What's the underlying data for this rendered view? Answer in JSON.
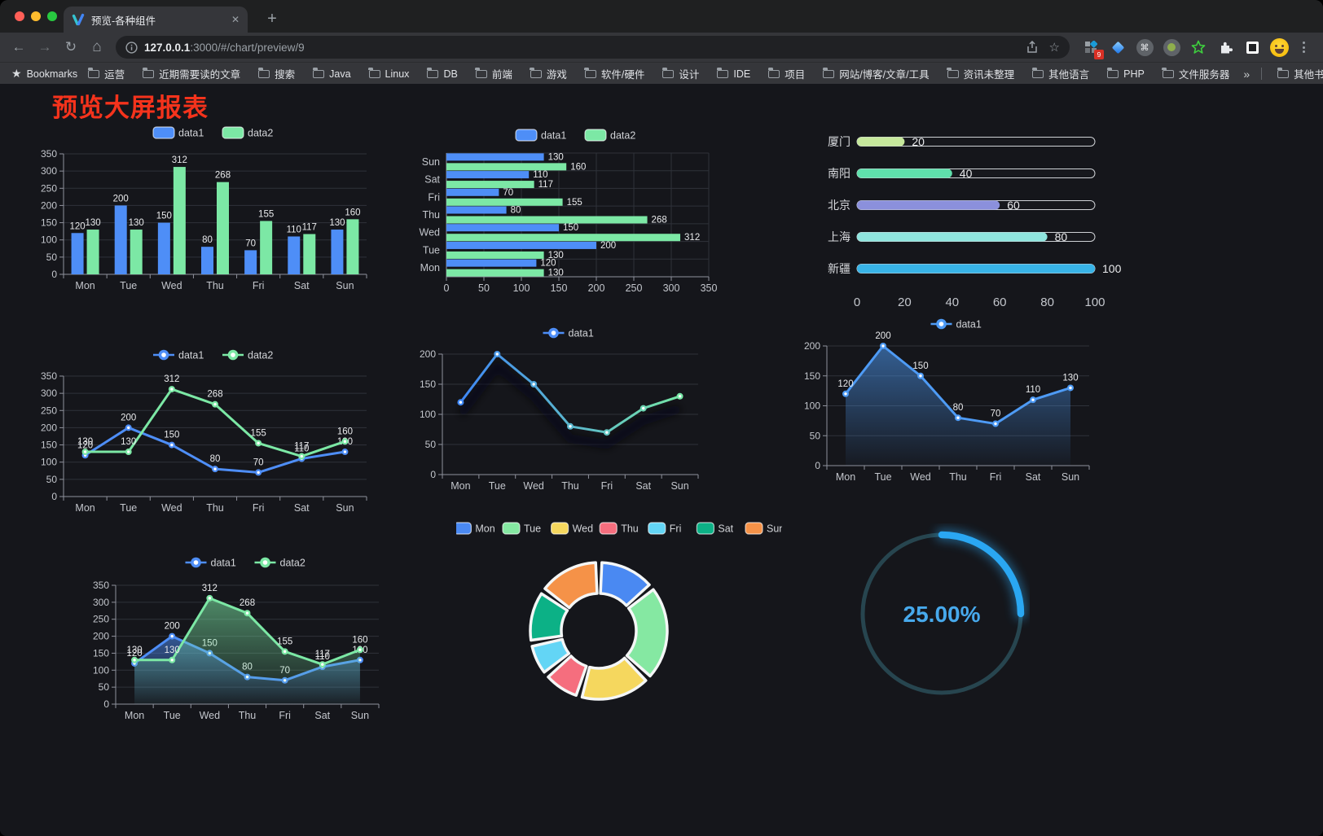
{
  "browser": {
    "traffic_lights": [
      "#ff5f57",
      "#febc2e",
      "#28c840"
    ],
    "tab": {
      "title": "预览-各种组件"
    },
    "close_icon": "✕",
    "new_tab_icon": "+",
    "nav": {
      "back": "←",
      "forward": "→",
      "reload": "↻",
      "home": "⌂"
    },
    "address": {
      "host": "127.0.0.1",
      "rest": ":3000/#/chart/preview/9"
    },
    "star_icon": "☆",
    "extension_badge": "9",
    "command_glyph": "⌘",
    "bookmarks_label": "Bookmarks",
    "bookmarks": [
      "运营",
      "近期需要读的文章",
      "搜索",
      "Java",
      "Linux",
      "DB",
      "前端",
      "游戏",
      "软件/硬件",
      "设计",
      "IDE",
      "项目",
      "网站/博客/文章/工具",
      "资讯未整理",
      "其他语言",
      "PHP",
      "文件服务器"
    ],
    "overflow_chevron": "»",
    "other_bookmarks": "其他书签"
  },
  "page": {
    "title": "预览大屏报表"
  },
  "styles": {
    "accent_red": "#f5331c",
    "page_bg": "#15161b",
    "axis": "#8f929c",
    "grid": "#2f323a",
    "tick_text": "#c3c6cc",
    "label_text": "#e9eaec",
    "legend_text": "#d2d4d8",
    "blue": "#4e8ef7",
    "green": "#7ce8a5"
  },
  "chart_data": [
    {
      "name": "grouped-bar",
      "type": "bar",
      "categories": [
        "Mon",
        "Tue",
        "Wed",
        "Thu",
        "Fri",
        "Sat",
        "Sun"
      ],
      "series": [
        {
          "name": "data1",
          "color": "#4e8ef7",
          "values": [
            120,
            200,
            150,
            80,
            70,
            110,
            130
          ]
        },
        {
          "name": "data2",
          "color": "#7ce8a5",
          "values": [
            130,
            130,
            312,
            268,
            155,
            117,
            160
          ]
        }
      ],
      "ylim": [
        0,
        350
      ],
      "ystep": 50,
      "legend_position": "top",
      "grid": true
    },
    {
      "name": "horizontal-bar",
      "type": "bar-horizontal",
      "categories": [
        "Mon",
        "Tue",
        "Wed",
        "Thu",
        "Fri",
        "Sat",
        "Sun"
      ],
      "series": [
        {
          "name": "data1",
          "color": "#4e8ef7",
          "values": [
            120,
            200,
            150,
            80,
            70,
            110,
            130
          ]
        },
        {
          "name": "data2",
          "color": "#7ce8a5",
          "values": [
            130,
            130,
            312,
            268,
            155,
            117,
            160
          ]
        }
      ],
      "xlim": [
        0,
        350
      ],
      "xstep": 50,
      "legend_position": "top",
      "grid": true
    },
    {
      "name": "city-progress",
      "type": "progress",
      "items": [
        {
          "label": "厦门",
          "value": 20,
          "color": "#c6e89c"
        },
        {
          "label": "南阳",
          "value": 40,
          "color": "#5fe0ac"
        },
        {
          "label": "北京",
          "value": 60,
          "color": "#8b90dc"
        },
        {
          "label": "上海",
          "value": 80,
          "color": "#8fe5de"
        },
        {
          "label": "新疆",
          "value": 100,
          "color": "#38b4e8"
        }
      ],
      "xlim": [
        0,
        100
      ],
      "xticks": [
        0,
        20,
        40,
        60,
        80,
        100
      ]
    },
    {
      "name": "two-line",
      "type": "line",
      "categories": [
        "Mon",
        "Tue",
        "Wed",
        "Thu",
        "Fri",
        "Sat",
        "Sun"
      ],
      "series": [
        {
          "name": "data1",
          "color": "#4e8ef7",
          "values": [
            120,
            200,
            150,
            80,
            70,
            110,
            130
          ],
          "labels": true
        },
        {
          "name": "data2",
          "color": "#7ce8a5",
          "values": [
            130,
            130,
            312,
            268,
            155,
            117,
            160
          ],
          "labels": true
        }
      ],
      "ylim": [
        0,
        350
      ],
      "ystep": 50,
      "legend_position": "top",
      "grid": true
    },
    {
      "name": "gradient-line",
      "type": "line",
      "categories": [
        "Mon",
        "Tue",
        "Wed",
        "Thu",
        "Fri",
        "Sat",
        "Sun"
      ],
      "series": [
        {
          "name": "data1",
          "color": "#4e8ef7",
          "gradient": [
            "#3f87f5",
            "#76e6a6"
          ],
          "values": [
            120,
            200,
            150,
            80,
            70,
            110,
            130
          ],
          "labels": false,
          "shadow": true
        }
      ],
      "ylim": [
        0,
        200
      ],
      "ystep": 50,
      "legend_position": "top",
      "grid": true
    },
    {
      "name": "single-area",
      "type": "line",
      "categories": [
        "Mon",
        "Tue",
        "Wed",
        "Thu",
        "Fri",
        "Sat",
        "Sun"
      ],
      "series": [
        {
          "name": "data1",
          "color": "#4e9bf5",
          "values": [
            120,
            200,
            150,
            80,
            70,
            110,
            130
          ],
          "labels": true,
          "area": true
        }
      ],
      "ylim": [
        0,
        200
      ],
      "ystep": 50,
      "legend_position": "top",
      "grid": true
    },
    {
      "name": "double-area",
      "type": "line",
      "categories": [
        "Mon",
        "Tue",
        "Wed",
        "Thu",
        "Fri",
        "Sat",
        "Sun"
      ],
      "series": [
        {
          "name": "data1",
          "color": "#4e8ef7",
          "values": [
            120,
            200,
            150,
            80,
            70,
            110,
            130
          ],
          "labels": true,
          "area": true
        },
        {
          "name": "data2",
          "color": "#7ce8a5",
          "values": [
            130,
            130,
            312,
            268,
            155,
            117,
            160
          ],
          "labels": true,
          "area": true
        }
      ],
      "ylim": [
        0,
        350
      ],
      "ystep": 50,
      "legend_position": "top",
      "grid": true
    },
    {
      "name": "donut",
      "type": "pie",
      "items": [
        {
          "label": "Mon",
          "value": 120,
          "color": "#4a89f2"
        },
        {
          "label": "Tue",
          "value": 200,
          "color": "#85e8a2"
        },
        {
          "label": "Wed",
          "value": 150,
          "color": "#f5d75e"
        },
        {
          "label": "Thu",
          "value": 80,
          "color": "#f56e7e"
        },
        {
          "label": "Fri",
          "value": 70,
          "color": "#63d5f5"
        },
        {
          "label": "Sat",
          "value": 110,
          "color": "#0cb186"
        },
        {
          "label": "Sun",
          "value": 130,
          "color": "#f59248"
        }
      ],
      "legend_position": "top"
    },
    {
      "name": "gauge",
      "type": "gauge",
      "value": 25,
      "display": "25.00%",
      "color": "#2aa7f2",
      "track_color": "#27454f",
      "text_color": "#47a9ec"
    }
  ]
}
